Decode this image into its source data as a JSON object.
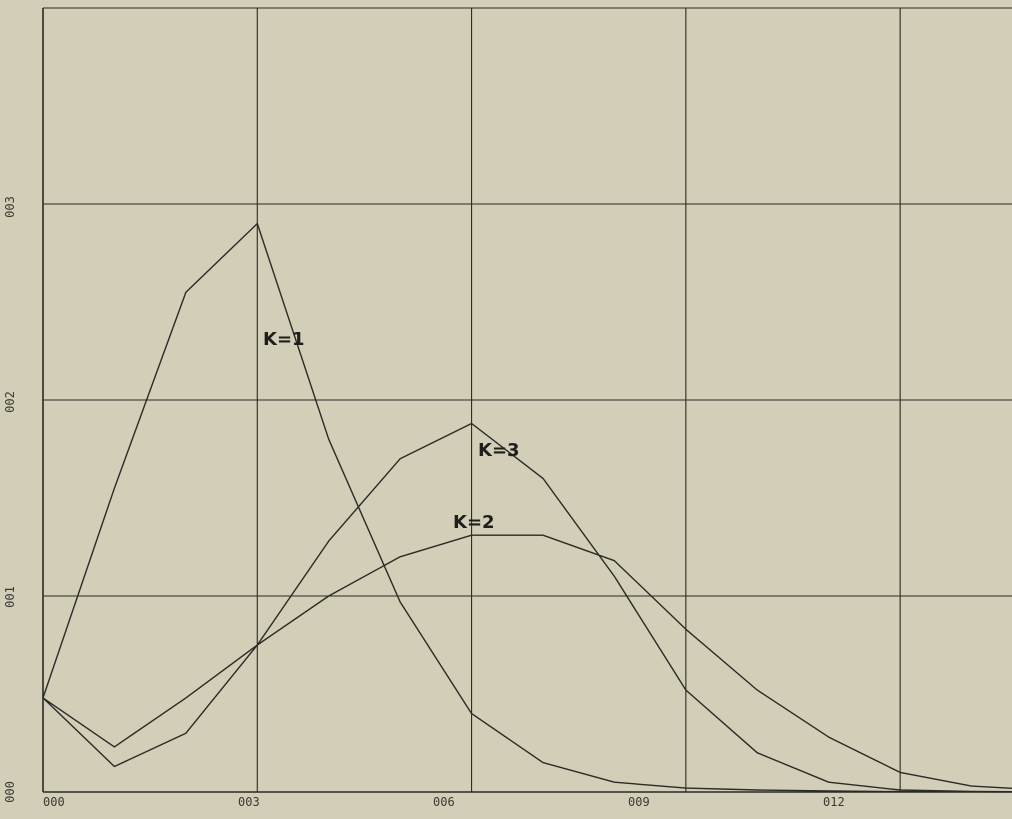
{
  "colors": {
    "background": "#d2ceb8",
    "grid": "#2a2a26",
    "line": "#2a2a26"
  },
  "chart_data": {
    "type": "line",
    "title": "",
    "xlabel": "",
    "ylabel": "",
    "xlim": [
      0,
      14
    ],
    "ylim": [
      0,
      0.4
    ],
    "grid": true,
    "legend": "none",
    "x_tick_labels": [
      "000",
      "003",
      "006",
      "009",
      "012"
    ],
    "y_tick_labels": [
      "000",
      "001",
      "002",
      "003"
    ],
    "x": [
      0,
      1,
      2,
      3,
      4,
      5,
      6,
      7,
      8,
      9,
      10,
      11,
      12,
      13,
      14
    ],
    "series": [
      {
        "name": "K=1",
        "values": [
          0.048,
          0.155,
          0.255,
          0.29,
          0.18,
          0.097,
          0.04,
          0.015,
          0.005,
          0.002,
          0.001,
          0.0005,
          0.0002,
          0.0001,
          0
        ]
      },
      {
        "name": "K=3",
        "values": [
          0.048,
          0.013,
          0.03,
          0.075,
          0.128,
          0.17,
          0.188,
          0.16,
          0.11,
          0.052,
          0.02,
          0.005,
          0.001,
          0.0003,
          0
        ]
      },
      {
        "name": "K=2",
        "values": [
          0.048,
          0.023,
          0.048,
          0.075,
          0.1,
          0.12,
          0.131,
          0.131,
          0.118,
          0.083,
          0.052,
          0.028,
          0.01,
          0.003,
          0.001
        ]
      }
    ]
  }
}
